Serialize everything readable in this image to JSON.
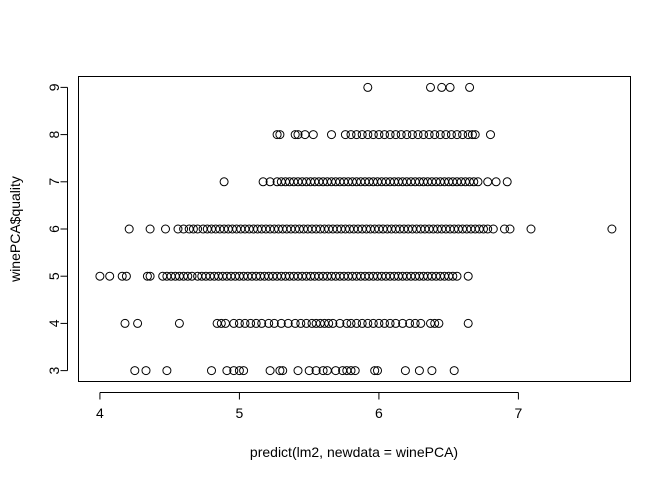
{
  "chart_data": {
    "type": "scatter",
    "title": "",
    "xlabel": "predict(lm2, newdata = winePCA)",
    "ylabel": "winePCA$quality",
    "xlim": [
      3.85,
      7.8
    ],
    "ylim": [
      2.78,
      9.22
    ],
    "x_ticks": [
      4,
      5,
      6,
      7
    ],
    "x_tick_labels": [
      "4",
      "5",
      "6",
      "7"
    ],
    "y_ticks": [
      3,
      4,
      5,
      6,
      7,
      8,
      9
    ],
    "y_tick_labels": [
      "3",
      "4",
      "5",
      "6",
      "7",
      "8",
      "9"
    ],
    "grid": false,
    "marker": "open-circle",
    "point_color": "#000000",
    "series": [
      {
        "groups": [
          {
            "y": 3,
            "x": [
              4.25,
              4.33,
              4.48,
              4.8,
              4.91,
              4.96,
              5.0,
              5.03,
              5.22,
              5.29,
              5.31,
              5.42,
              5.5,
              5.55,
              5.6,
              5.63,
              5.69,
              5.74,
              5.77,
              5.8,
              5.83,
              5.97,
              5.99,
              6.19,
              6.29,
              6.38,
              6.54
            ]
          },
          {
            "y": 4,
            "x": [
              4.18,
              4.27,
              4.57,
              4.84,
              4.87,
              4.9,
              4.96,
              5.0,
              5.04,
              5.08,
              5.12,
              5.16,
              5.21,
              5.25,
              5.3,
              5.35,
              5.4,
              5.44,
              5.48,
              5.52,
              5.55,
              5.58,
              5.61,
              5.64,
              5.67,
              5.72,
              5.77,
              5.8,
              5.84,
              5.88,
              5.92,
              5.96,
              6.0,
              6.04,
              6.08,
              6.12,
              6.17,
              6.22,
              6.26,
              6.3,
              6.37,
              6.4,
              6.43,
              6.64
            ]
          },
          {
            "y": 5,
            "x": [
              4.0,
              4.07,
              4.16,
              4.19,
              4.34,
              4.36,
              4.45,
              4.48,
              4.51,
              4.54,
              4.57,
              4.6,
              4.63,
              4.66,
              4.7,
              4.73,
              4.76,
              4.79,
              4.82,
              4.85,
              4.88,
              4.91,
              4.94,
              4.97,
              5.0,
              5.03,
              5.06,
              5.09,
              5.12,
              5.15,
              5.18,
              5.21,
              5.24,
              5.27,
              5.3,
              5.33,
              5.36,
              5.39,
              5.42,
              5.45,
              5.48,
              5.51,
              5.54,
              5.57,
              5.6,
              5.63,
              5.66,
              5.69,
              5.72,
              5.75,
              5.78,
              5.81,
              5.84,
              5.87,
              5.9,
              5.93,
              5.96,
              5.99,
              6.02,
              6.05,
              6.08,
              6.11,
              6.14,
              6.17,
              6.2,
              6.23,
              6.26,
              6.29,
              6.32,
              6.35,
              6.38,
              6.41,
              6.44,
              6.47,
              6.5,
              6.53,
              6.56,
              6.64
            ]
          },
          {
            "y": 6,
            "x": [
              4.21,
              4.36,
              4.47,
              4.56,
              4.6,
              4.64,
              4.67,
              4.7,
              4.74,
              4.77,
              4.8,
              4.83,
              4.86,
              4.89,
              4.92,
              4.95,
              4.98,
              5.01,
              5.04,
              5.07,
              5.1,
              5.13,
              5.16,
              5.19,
              5.22,
              5.25,
              5.28,
              5.31,
              5.34,
              5.37,
              5.4,
              5.43,
              5.46,
              5.49,
              5.52,
              5.55,
              5.58,
              5.61,
              5.64,
              5.67,
              5.7,
              5.73,
              5.76,
              5.79,
              5.82,
              5.85,
              5.88,
              5.91,
              5.94,
              5.97,
              6.0,
              6.03,
              6.06,
              6.09,
              6.12,
              6.15,
              6.18,
              6.21,
              6.24,
              6.27,
              6.3,
              6.33,
              6.36,
              6.39,
              6.42,
              6.45,
              6.48,
              6.51,
              6.54,
              6.57,
              6.6,
              6.63,
              6.66,
              6.69,
              6.72,
              6.75,
              6.78,
              6.82,
              6.9,
              6.94,
              7.09,
              7.67
            ]
          },
          {
            "y": 7,
            "x": [
              4.89,
              5.17,
              5.22,
              5.27,
              5.3,
              5.33,
              5.36,
              5.39,
              5.42,
              5.45,
              5.48,
              5.51,
              5.54,
              5.57,
              5.6,
              5.63,
              5.66,
              5.69,
              5.72,
              5.75,
              5.78,
              5.81,
              5.84,
              5.87,
              5.9,
              5.93,
              5.96,
              5.99,
              6.02,
              6.05,
              6.08,
              6.11,
              6.14,
              6.17,
              6.2,
              6.23,
              6.26,
              6.29,
              6.32,
              6.35,
              6.38,
              6.41,
              6.44,
              6.47,
              6.5,
              6.53,
              6.56,
              6.59,
              6.62,
              6.65,
              6.68,
              6.71,
              6.78,
              6.84,
              6.92
            ]
          },
          {
            "y": 8,
            "x": [
              5.27,
              5.29,
              5.4,
              5.42,
              5.47,
              5.53,
              5.66,
              5.76,
              5.8,
              5.84,
              5.88,
              5.92,
              5.96,
              6.0,
              6.04,
              6.08,
              6.12,
              6.16,
              6.2,
              6.24,
              6.28,
              6.32,
              6.36,
              6.4,
              6.44,
              6.48,
              6.52,
              6.56,
              6.6,
              6.64,
              6.67,
              6.69,
              6.8
            ]
          },
          {
            "y": 9,
            "x": [
              5.92,
              6.37,
              6.45,
              6.51,
              6.65
            ]
          }
        ]
      }
    ]
  }
}
